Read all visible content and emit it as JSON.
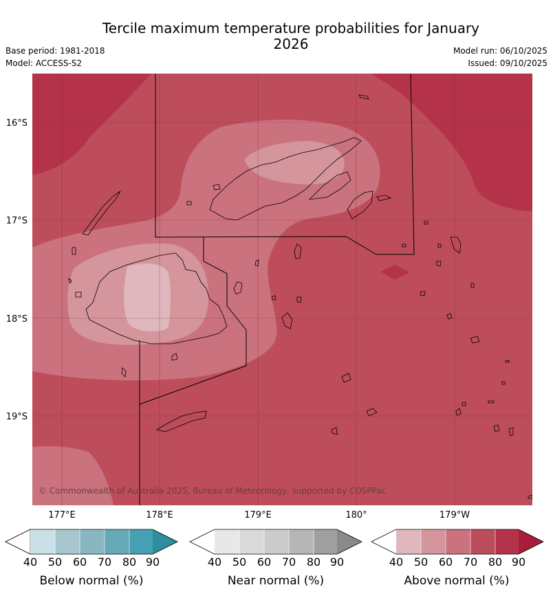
{
  "header": {
    "title": "Tercile maximum temperature probabilities for January 2026",
    "base_period": "Base period: 1981-2018",
    "model": "Model: ACCESS-S2",
    "model_run": "Model run: 06/10/2025",
    "issued": "Issued: 09/10/2025"
  },
  "map": {
    "copyright": "© Commonwealth of Australia 2025, Bureau of Meteorology, supported by COSPPac",
    "lat_ticks": [
      "16°S",
      "17°S",
      "18°S",
      "19°S"
    ],
    "lon_ticks": [
      "177°E",
      "178°E",
      "179°E",
      "180°",
      "179°W"
    ],
    "colors": {
      "above_40_50": "#dfb7bd",
      "above_50_60": "#d4959c",
      "above_60_70": "#ca727d",
      "above_70_80": "#bd4d5b",
      "above_80_90": "#b5334a",
      "above_90": "#a71d3a"
    }
  },
  "colorbars": [
    {
      "label": "Below normal (%)",
      "ticks": [
        "40",
        "50",
        "60",
        "70",
        "80",
        "90"
      ],
      "colors": [
        "#ffffff",
        "#c8e0e6",
        "#a6c7cd",
        "#89b7c1",
        "#68a9b7",
        "#44a0b2",
        "#2e8f9f"
      ]
    },
    {
      "label": "Near normal (%)",
      "ticks": [
        "40",
        "50",
        "60",
        "70",
        "80",
        "90"
      ],
      "colors": [
        "#ffffff",
        "#e8e8e8",
        "#dadada",
        "#cbcbcb",
        "#b6b6b6",
        "#a0a0a0",
        "#8a8a8a"
      ]
    },
    {
      "label": "Above normal (%)",
      "ticks": [
        "40",
        "50",
        "60",
        "70",
        "80",
        "90"
      ],
      "colors": [
        "#ffffff",
        "#dfb7bd",
        "#d4959c",
        "#ca727d",
        "#bd4d5b",
        "#b5334a",
        "#a71d3a"
      ]
    }
  ]
}
